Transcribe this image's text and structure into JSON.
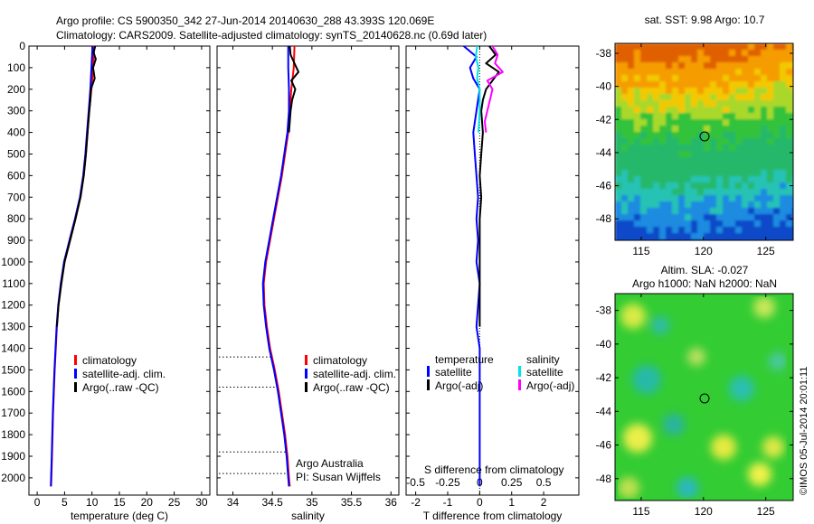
{
  "header": {
    "title_line1": "Argo profile: CS 5900350_342 27-Jun-2014 20140630_288 43.393S 120.069E",
    "title_line2": "Climatology: CARS2009. Satellite-adjusted climatology: synTS_20140628.nc (0.69d later)"
  },
  "colors": {
    "climatology": "#ff0000",
    "satellite": "#0000ff",
    "argo": "#000000",
    "sal_satellite": "#00e5e5",
    "sal_argo": "#ff00ff"
  },
  "chart_data": [
    {
      "type": "line",
      "name": "temperature-profile",
      "xlabel": "temperature (deg C)",
      "ylabel": "",
      "xlim": [
        -1.5,
        31.5
      ],
      "ylim": [
        2080,
        0
      ],
      "xticks": [
        0,
        5,
        10,
        15,
        20,
        25,
        30
      ],
      "yticks": [
        0,
        100,
        200,
        300,
        400,
        500,
        600,
        700,
        800,
        900,
        1000,
        1100,
        1200,
        1300,
        1400,
        1500,
        1600,
        1700,
        1800,
        1900,
        2000
      ],
      "legend": [
        "climatology",
        "satellite-adj. clim.",
        "Argo(..raw -QC)"
      ],
      "legend_position": "lower-center",
      "series": [
        {
          "name": "climatology",
          "depth": [
            0,
            100,
            200,
            300,
            400,
            500,
            600,
            700,
            800,
            900,
            1000,
            1100,
            1200,
            1300,
            1400,
            1500,
            1600,
            1700,
            1800,
            1900,
            2000,
            2040
          ],
          "values": [
            10.4,
            10.2,
            9.9,
            9.5,
            9.2,
            8.9,
            8.5,
            7.9,
            7.0,
            6.0,
            5.0,
            4.4,
            3.9,
            3.6,
            3.4,
            3.2,
            3.05,
            2.9,
            2.8,
            2.7,
            2.6,
            2.55
          ]
        },
        {
          "name": "satellite-adj. clim.",
          "depth": [
            0,
            100,
            200,
            300,
            400,
            500,
            600,
            700,
            800,
            900,
            1000,
            1100,
            1200,
            1300,
            1400,
            1500,
            1600,
            1700,
            1800,
            1900,
            2000,
            2040
          ],
          "values": [
            10.1,
            9.9,
            9.7,
            9.4,
            9.1,
            8.8,
            8.4,
            7.8,
            6.9,
            5.9,
            4.9,
            4.3,
            3.85,
            3.55,
            3.35,
            3.15,
            3.0,
            2.85,
            2.75,
            2.65,
            2.55,
            2.5
          ]
        },
        {
          "name": "Argo(..raw -QC)",
          "depth": [
            0,
            30,
            60,
            100,
            150,
            200,
            250,
            300,
            400,
            500,
            600,
            700,
            800,
            900,
            1000,
            1100,
            1200,
            1300
          ],
          "values": [
            10.6,
            10.3,
            10.7,
            10.2,
            10.5,
            9.8,
            9.7,
            9.5,
            9.2,
            8.9,
            8.5,
            7.9,
            7.0,
            6.0,
            5.0,
            4.4,
            3.9,
            3.6
          ]
        }
      ]
    },
    {
      "type": "line",
      "name": "salinity-profile",
      "xlabel": "salinity",
      "ylabel": "",
      "xlim": [
        33.8,
        36.1
      ],
      "ylim": [
        2080,
        0
      ],
      "xticks": [
        34,
        34.5,
        35,
        35.5,
        36
      ],
      "xtick_labels": [
        "34",
        "34.5",
        "35",
        "35.5",
        "36"
      ],
      "legend": [
        "climatology",
        "satellite-adj. clim.",
        "Argo(..raw -QC)"
      ],
      "legend_position": "lower-right",
      "annotations": [
        "Argo Australia",
        "PI: Susan Wijffels"
      ],
      "series": [
        {
          "name": "climatology",
          "depth": [
            0,
            100,
            200,
            300,
            400,
            500,
            600,
            700,
            800,
            900,
            1000,
            1100,
            1200,
            1300,
            1400,
            1500,
            1600,
            1700,
            1800,
            1900,
            2000,
            2040
          ],
          "values": [
            34.78,
            34.77,
            34.74,
            34.72,
            34.7,
            34.66,
            34.62,
            34.57,
            34.52,
            34.47,
            34.42,
            34.39,
            34.4,
            34.43,
            34.47,
            34.53,
            34.58,
            34.62,
            34.66,
            34.69,
            34.71,
            34.72
          ]
        },
        {
          "name": "satellite-adj. clim.",
          "depth": [
            0,
            100,
            200,
            300,
            400,
            500,
            600,
            700,
            800,
            900,
            1000,
            1100,
            1200,
            1300,
            1400,
            1500,
            1600,
            1700,
            1800,
            1900,
            2000,
            2040
          ],
          "values": [
            34.7,
            34.7,
            34.71,
            34.71,
            34.69,
            34.65,
            34.61,
            34.56,
            34.51,
            34.46,
            34.41,
            34.38,
            34.39,
            34.42,
            34.46,
            34.52,
            34.57,
            34.61,
            34.65,
            34.68,
            34.7,
            34.71
          ]
        },
        {
          "name": "Argo(..raw -QC)",
          "depth": [
            0,
            40,
            80,
            120,
            160,
            200,
            250,
            300,
            350,
            400
          ],
          "values": [
            34.72,
            34.73,
            34.78,
            34.83,
            34.74,
            34.79,
            34.75,
            34.73,
            34.72,
            34.71
          ]
        }
      ]
    },
    {
      "type": "line",
      "name": "difference-from-climatology",
      "xlabel": "T difference from climatology",
      "xlabel_top": "S difference from climatology",
      "xlim": [
        -2.3,
        3.1
      ],
      "ylim": [
        2080,
        0
      ],
      "xticks": [
        -2,
        -1,
        0,
        1,
        2
      ],
      "xtick_labels": [
        "-2",
        "-1",
        "0",
        "1",
        "2"
      ],
      "top_ticks": [
        -0.5,
        -0.25,
        0,
        0.25,
        0.5
      ],
      "top_tick_labels": [
        "-0.5",
        "-0.25",
        "0",
        "0.25",
        "0.5"
      ],
      "legend": {
        "temperature": [
          "satellite",
          "Argo(-adj)"
        ],
        "salinity": [
          "satellite",
          "Argo(-adj)"
        ]
      },
      "legend_headers": [
        "temperature",
        "salinity"
      ],
      "series": [
        {
          "name": "temperature satellite",
          "depth": [
            0,
            50,
            100,
            150,
            200,
            300,
            400,
            500,
            600,
            700,
            800,
            900,
            1000,
            1100,
            1200,
            1300,
            1400,
            1600,
            1800,
            2000,
            2040
          ],
          "values": [
            -0.5,
            -0.1,
            -0.3,
            -0.2,
            0.0,
            -0.1,
            -0.2,
            -0.15,
            -0.1,
            -0.05,
            -0.1,
            -0.05,
            -0.1,
            0.0,
            -0.05,
            -0.1,
            0.0,
            0.0,
            0.0,
            0.0,
            0.0
          ]
        },
        {
          "name": "temperature Argo(-adj)",
          "depth": [
            0,
            40,
            80,
            120,
            160,
            200,
            250,
            300,
            400,
            500,
            600,
            700,
            800,
            900,
            1000,
            1100,
            1200,
            1300
          ],
          "values": [
            0.3,
            0.5,
            0.2,
            0.6,
            0.4,
            0.2,
            0.1,
            0.05,
            0.1,
            0.05,
            0.0,
            0.05,
            0.0,
            0.0,
            0.0,
            0.0,
            0.0,
            0.0
          ]
        },
        {
          "name": "salinity satellite",
          "depth": [
            0,
            50,
            100,
            150,
            200,
            300,
            400
          ],
          "values": [
            -0.02,
            -0.03,
            -0.01,
            -0.02,
            0.0,
            0.0,
            -0.01
          ]
        },
        {
          "name": "salinity Argo(-adj)",
          "depth": [
            0,
            40,
            80,
            120,
            160,
            200,
            250,
            300,
            350,
            400
          ],
          "values": [
            0.1,
            0.14,
            0.12,
            0.18,
            0.06,
            0.1,
            0.08,
            0.06,
            0.04,
            0.05
          ]
        }
      ]
    }
  ],
  "maps": {
    "sst": {
      "title": "sat. SST: 9.98 Argo: 10.7",
      "yticks": [
        "-38",
        "-40",
        "-42",
        "-44",
        "-46",
        "-48"
      ],
      "xticks": [
        "115",
        "120",
        "125"
      ]
    },
    "sla": {
      "title_line1": "Altim. SLA: -0.027",
      "title_line2": "Argo h1000: NaN h2000: NaN",
      "yticks": [
        "-38",
        "-40",
        "-42",
        "-44",
        "-46",
        "-48"
      ],
      "xticks": [
        "115",
        "120",
        "125"
      ]
    },
    "float_position": {
      "lon": 120.069,
      "lat": -43.393
    }
  },
  "watermark": "©IMOS 05-Jul-2014 20:01:11"
}
